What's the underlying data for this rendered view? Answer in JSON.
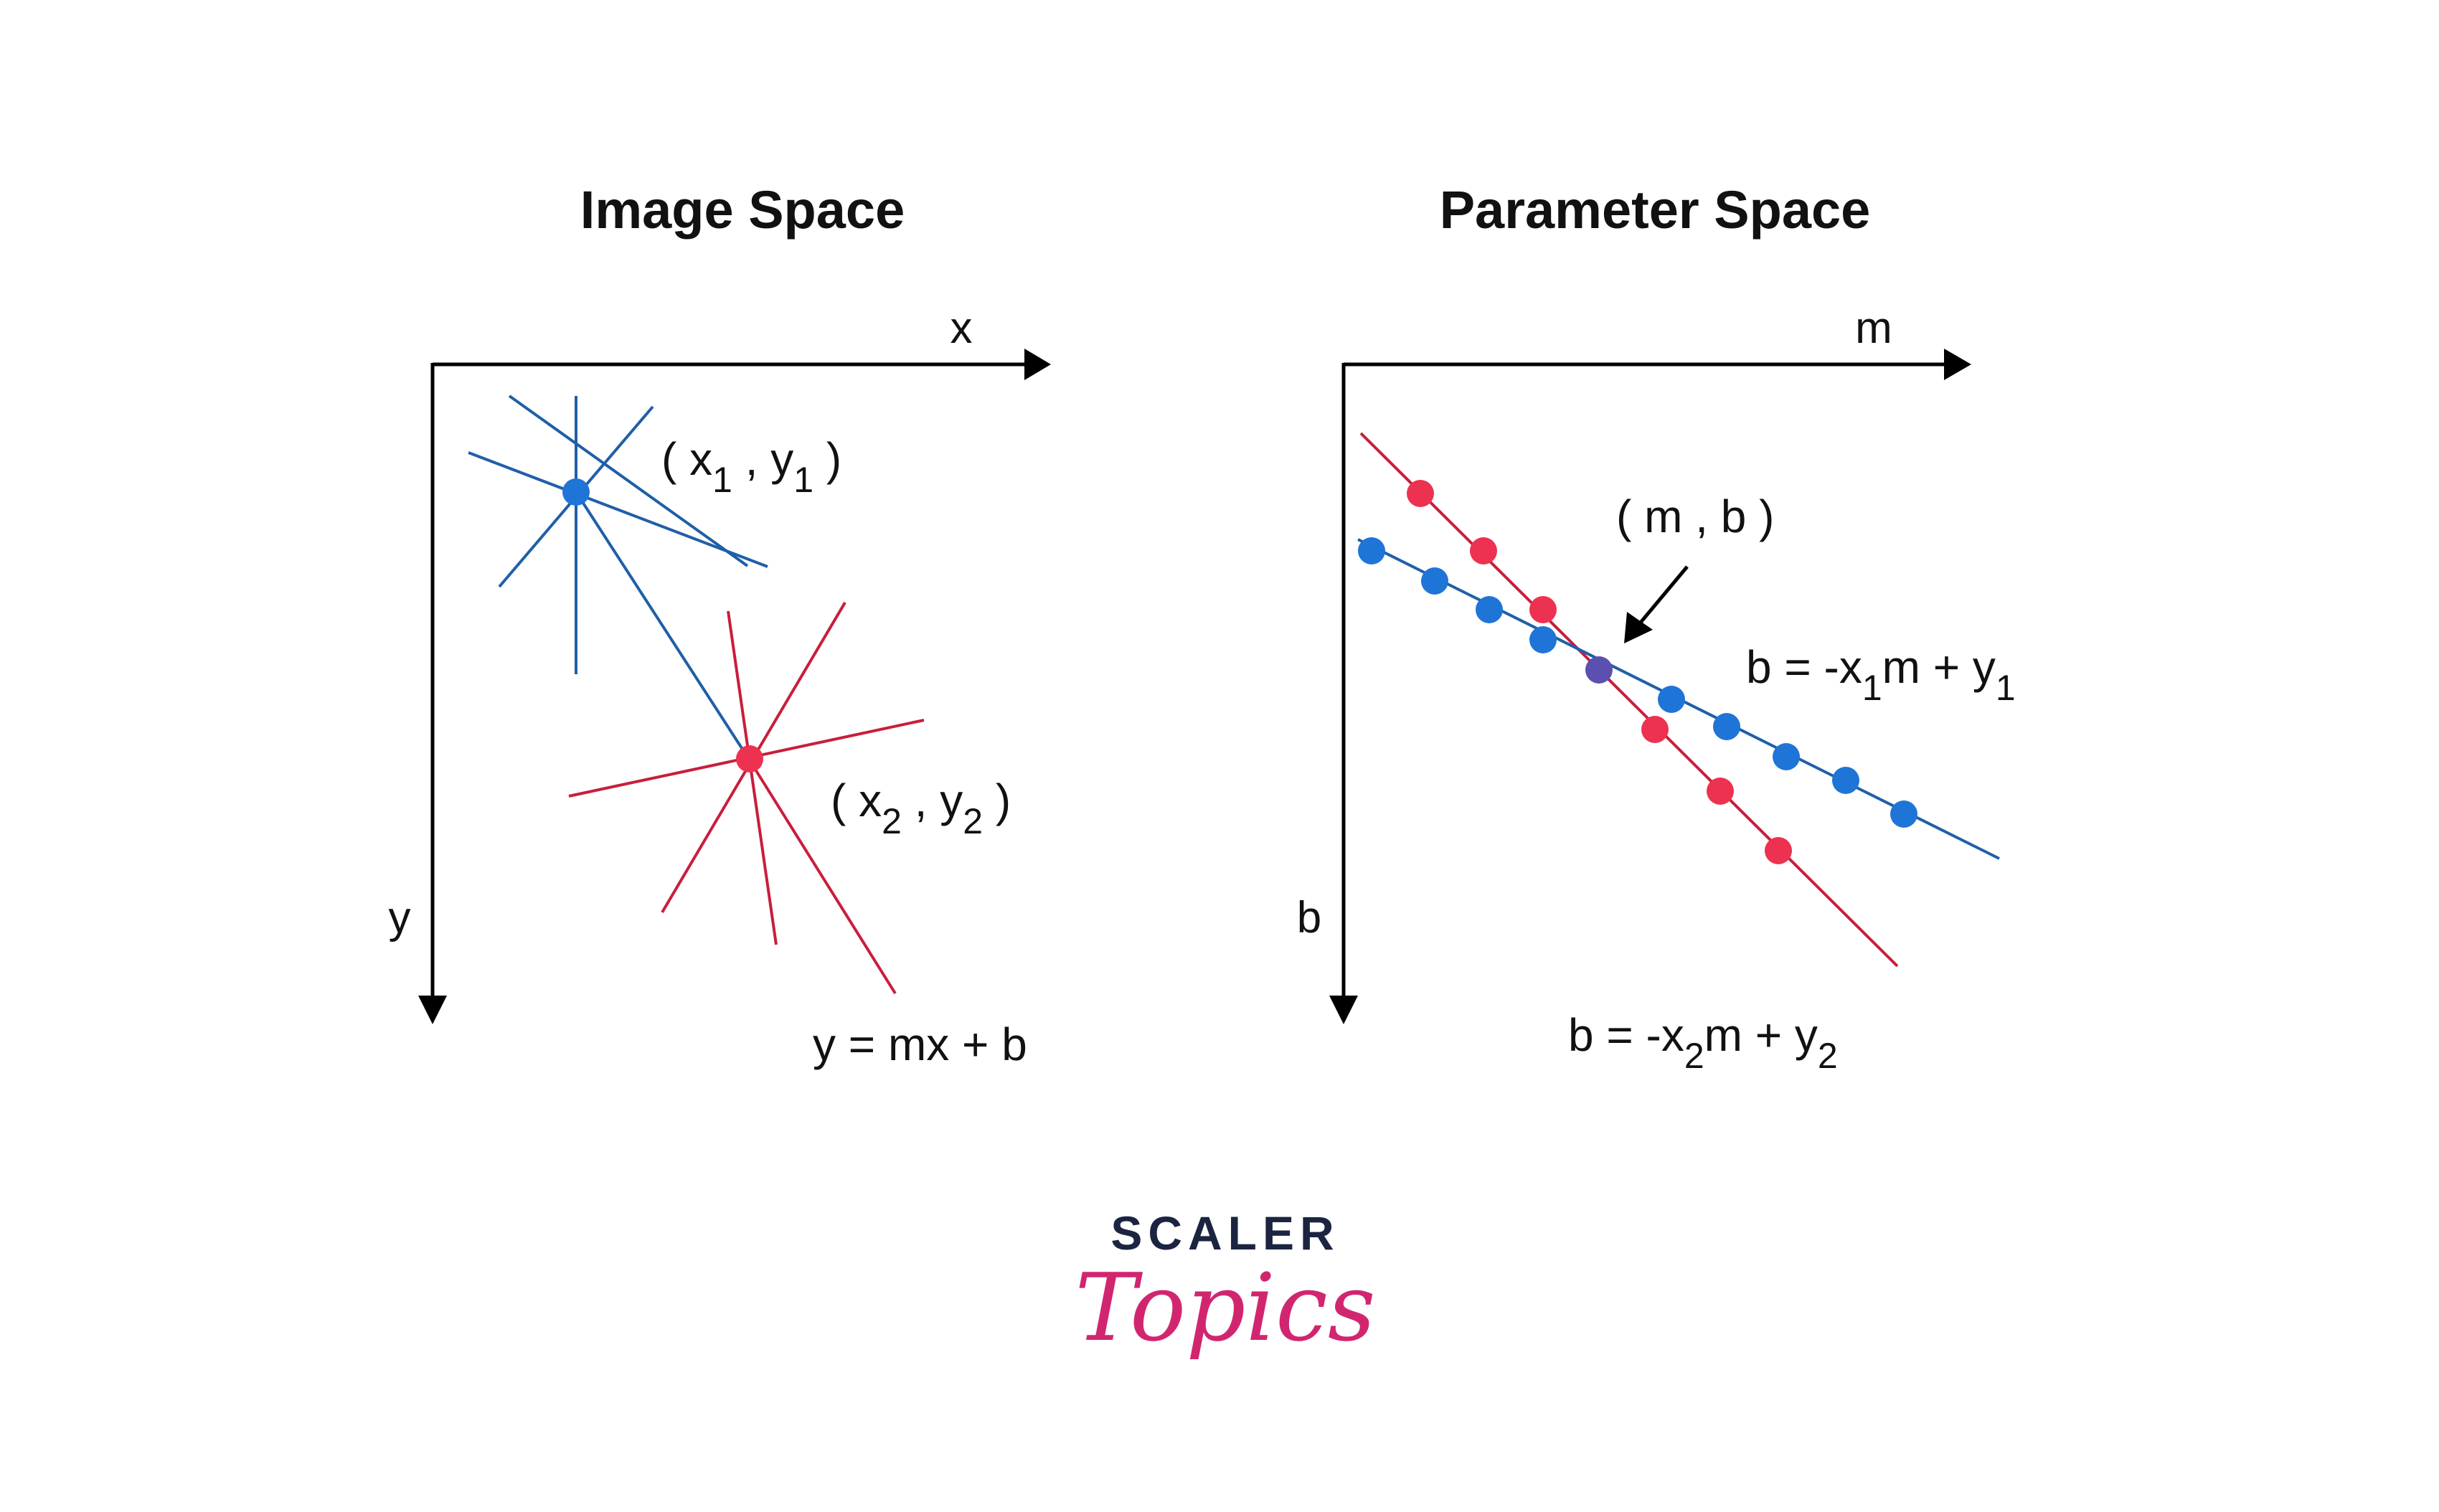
{
  "image_space": {
    "title": "Image Space",
    "x_axis_label": "x",
    "y_axis_label": "y",
    "point1_label": {
      "open": "( x",
      "sub1": "1",
      "mid": " , y",
      "sub2": "1",
      "close": " )"
    },
    "point2_label": {
      "open": "( x",
      "sub1": "2",
      "mid": " , y",
      "sub2": "2",
      "close": " )"
    },
    "line_equation": "y = mx + b"
  },
  "parameter_space": {
    "title": "Parameter Space",
    "m_axis_label": "m",
    "b_axis_label": "b",
    "intersection_label": "( m , b )",
    "equation1": {
      "pre": "b = -x",
      "sub1": "1",
      "mid": "m + y",
      "sub2": "1"
    },
    "equation2": {
      "pre": "b = -x",
      "sub1": "2",
      "mid": "m + y",
      "sub2": "2"
    }
  },
  "logo": {
    "top": "SCALER",
    "bottom": "Topics"
  },
  "colors": {
    "blue_point": "#1f74d8",
    "blue_line": "#1f5fa8",
    "red_point": "#ec3250",
    "red_line": "#c81e3c",
    "intersection": "#5b4fb0",
    "axis": "#000000",
    "logo_dark": "#1b2440",
    "logo_pink": "#d1266f"
  }
}
